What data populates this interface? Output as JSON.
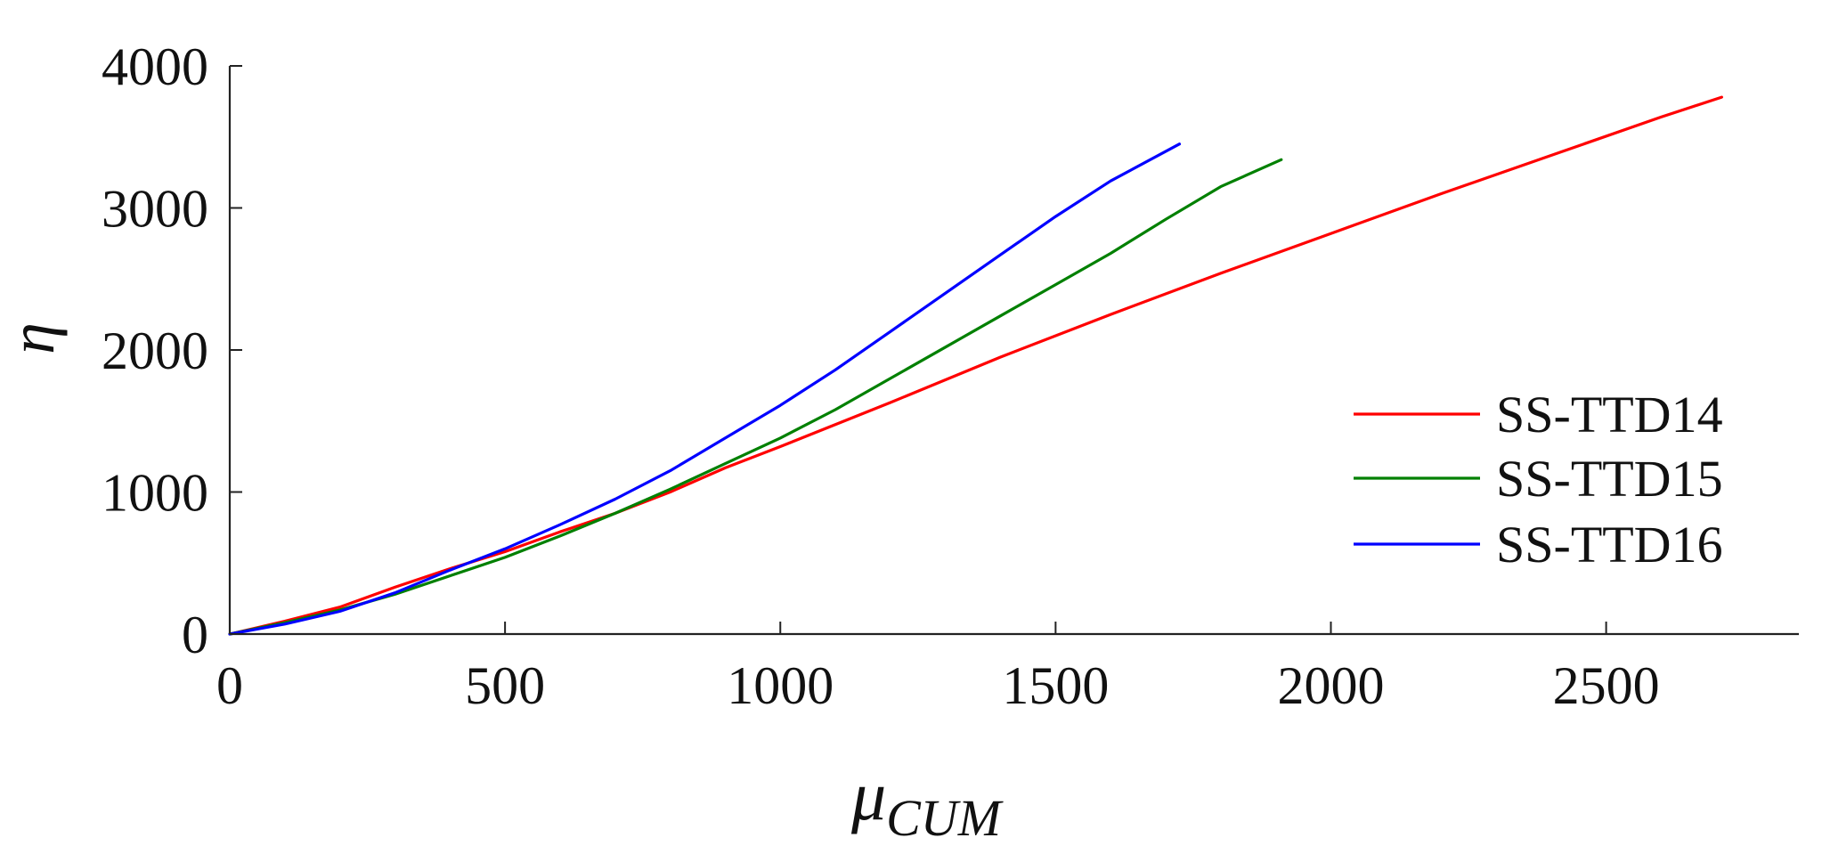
{
  "chart_data": {
    "type": "line",
    "title": "",
    "xlabel": "μ",
    "xlabel_subscript": "CUM",
    "ylabel": "η",
    "xlim": [
      0,
      2850
    ],
    "ylim": [
      0,
      4000
    ],
    "x_ticks": [
      0,
      500,
      1000,
      1500,
      2000,
      2500
    ],
    "y_ticks": [
      0,
      1000,
      2000,
      3000,
      4000
    ],
    "x_tick_labels": [
      "0",
      "500",
      "1000",
      "1500",
      "2000",
      "2500"
    ],
    "y_tick_labels": [
      "0",
      "1000",
      "2000",
      "3000",
      "4000"
    ],
    "grid": false,
    "legend_position": "right",
    "series": [
      {
        "name": "SS-TTD14",
        "color": "#ff0000",
        "x": [
          0,
          100,
          200,
          300,
          400,
          500,
          600,
          700,
          800,
          900,
          1000,
          1200,
          1400,
          1600,
          1800,
          2000,
          2200,
          2400,
          2600,
          2710
        ],
        "y": [
          0,
          90,
          190,
          330,
          460,
          580,
          720,
          850,
          1000,
          1170,
          1320,
          1630,
          1950,
          2250,
          2540,
          2820,
          3100,
          3370,
          3640,
          3780
        ]
      },
      {
        "name": "SS-TTD15",
        "color": "#008000",
        "x": [
          0,
          100,
          200,
          300,
          400,
          500,
          600,
          700,
          800,
          900,
          1000,
          1100,
          1200,
          1300,
          1400,
          1500,
          1600,
          1700,
          1800,
          1910
        ],
        "y": [
          0,
          80,
          170,
          280,
          410,
          540,
          690,
          850,
          1020,
          1200,
          1380,
          1580,
          1800,
          2020,
          2240,
          2460,
          2680,
          2920,
          3150,
          3340
        ]
      },
      {
        "name": "SS-TTD16",
        "color": "#0000ff",
        "x": [
          0,
          100,
          200,
          300,
          400,
          500,
          600,
          700,
          800,
          900,
          1000,
          1100,
          1200,
          1300,
          1400,
          1500,
          1600,
          1725
        ],
        "y": [
          0,
          70,
          160,
          290,
          450,
          600,
          770,
          950,
          1150,
          1380,
          1610,
          1860,
          2130,
          2400,
          2670,
          2940,
          3190,
          3450
        ]
      }
    ]
  }
}
